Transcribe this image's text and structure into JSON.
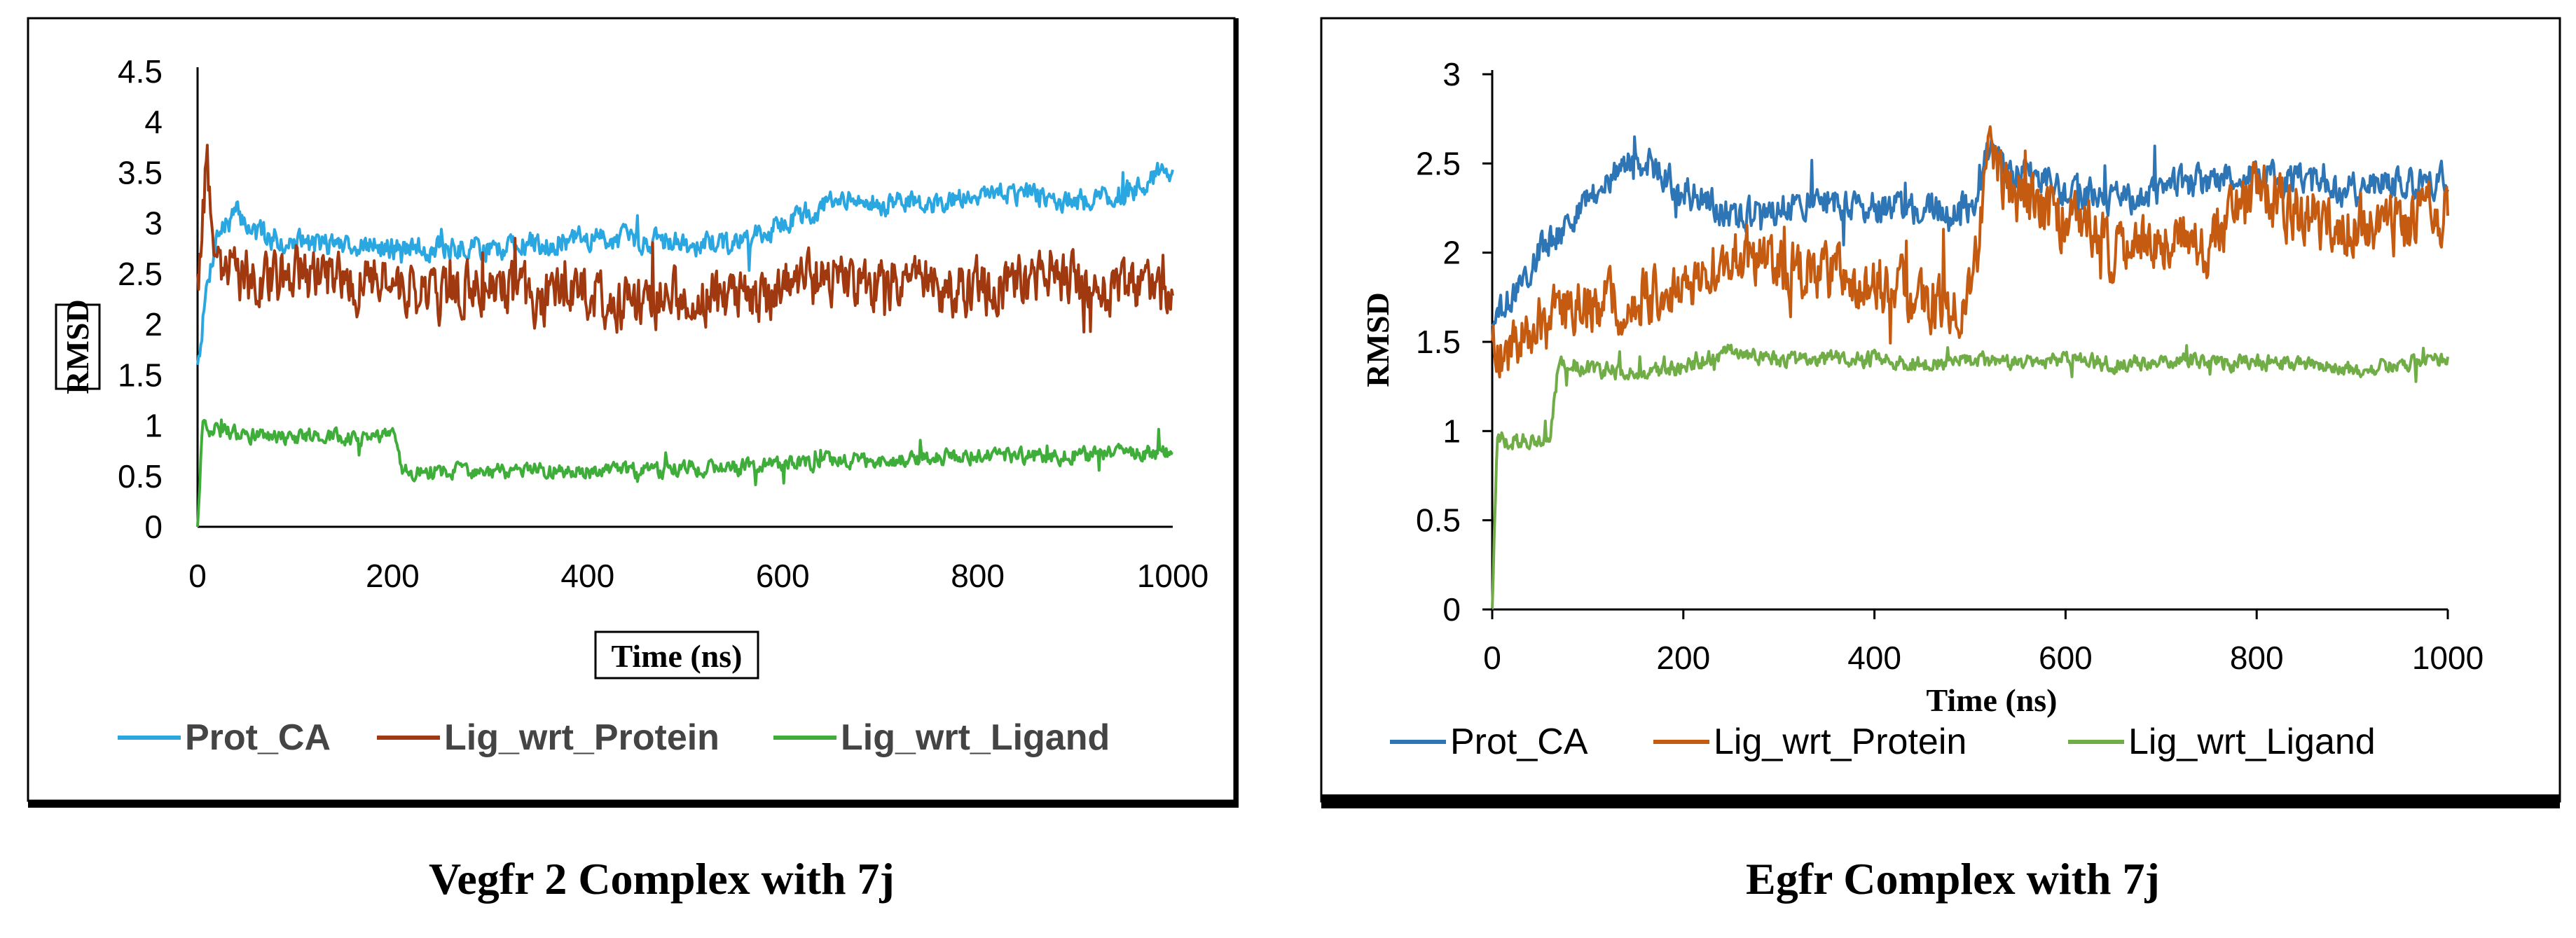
{
  "chart_data": [
    {
      "type": "line",
      "caption": "Vegfr 2 Complex with 7j",
      "xlabel": "Time (ns)",
      "ylabel": "RMSD",
      "xlim": [
        0,
        1000
      ],
      "ylim": [
        0,
        4.5
      ],
      "x_ticks": [
        "0",
        "200",
        "400",
        "600",
        "800",
        "1000"
      ],
      "y_ticks": [
        "0",
        "0.5",
        "1",
        "1.5",
        "2",
        "2.5",
        "3",
        "3.5",
        "4",
        "4.5"
      ],
      "legend_position": "bottom",
      "series": [
        {
          "name": "Prot_CA",
          "color": "#2aa7e0",
          "x": [
            0,
            10,
            20,
            40,
            60,
            100,
            150,
            200,
            250,
            300,
            350,
            400,
            450,
            500,
            550,
            600,
            650,
            700,
            750,
            800,
            850,
            900,
            950,
            1000
          ],
          "values": [
            1.6,
            2.4,
            2.9,
            3.1,
            2.9,
            2.8,
            2.8,
            2.75,
            2.75,
            2.75,
            2.8,
            2.85,
            2.85,
            2.8,
            2.8,
            3.0,
            3.2,
            3.2,
            3.2,
            3.3,
            3.3,
            3.2,
            3.3,
            3.55
          ]
        },
        {
          "name": "Lig_wrt_Protein",
          "color": "#a0390f",
          "x": [
            0,
            10,
            20,
            40,
            60,
            100,
            150,
            200,
            250,
            300,
            350,
            400,
            450,
            500,
            550,
            600,
            650,
            700,
            750,
            800,
            850,
            900,
            950,
            1000
          ],
          "values": [
            2.5,
            3.5,
            2.6,
            2.5,
            2.4,
            2.5,
            2.4,
            2.4,
            2.3,
            2.4,
            2.25,
            2.3,
            2.2,
            2.3,
            2.2,
            2.3,
            2.5,
            2.4,
            2.4,
            2.35,
            2.4,
            2.4,
            2.3,
            2.3
          ]
        },
        {
          "name": "Lig_wrt_Ligand",
          "color": "#3fad3a",
          "x": [
            0,
            5,
            20,
            50,
            100,
            150,
            200,
            210,
            230,
            300,
            350,
            400,
            450,
            500,
            550,
            600,
            650,
            700,
            750,
            800,
            850,
            900,
            950,
            1000
          ],
          "values": [
            0.0,
            0.95,
            0.95,
            0.9,
            0.9,
            0.88,
            0.88,
            0.55,
            0.55,
            0.55,
            0.55,
            0.55,
            0.55,
            0.58,
            0.58,
            0.62,
            0.65,
            0.65,
            0.68,
            0.7,
            0.7,
            0.7,
            0.72,
            0.75
          ]
        }
      ]
    },
    {
      "type": "line",
      "caption": "Egfr Complex with 7j",
      "xlabel": "Time (ns)",
      "ylabel": "RMSD",
      "xlim": [
        0,
        1000
      ],
      "ylim": [
        0,
        3
      ],
      "x_ticks": [
        "0",
        "200",
        "400",
        "600",
        "800",
        "1000"
      ],
      "y_ticks": [
        "0",
        "0.5",
        "1",
        "1.5",
        "2",
        "2.5",
        "3"
      ],
      "legend_position": "bottom",
      "series": [
        {
          "name": "Prot_CA",
          "color": "#2e75b6",
          "x": [
            0,
            20,
            50,
            100,
            150,
            200,
            250,
            300,
            350,
            400,
            450,
            500,
            520,
            550,
            600,
            650,
            700,
            750,
            800,
            850,
            900,
            950,
            1000
          ],
          "values": [
            1.6,
            1.75,
            2.0,
            2.3,
            2.55,
            2.35,
            2.2,
            2.25,
            2.3,
            2.25,
            2.25,
            2.25,
            2.55,
            2.45,
            2.35,
            2.3,
            2.35,
            2.4,
            2.45,
            2.4,
            2.35,
            2.4,
            2.4
          ]
        },
        {
          "name": "Lig_wrt_Protein",
          "color": "#c55a11",
          "x": [
            0,
            20,
            50,
            100,
            150,
            200,
            250,
            300,
            350,
            400,
            450,
            500,
            520,
            550,
            600,
            650,
            700,
            750,
            800,
            850,
            900,
            950,
            1000
          ],
          "values": [
            1.5,
            1.45,
            1.6,
            1.7,
            1.75,
            1.75,
            2.0,
            1.9,
            1.9,
            1.85,
            1.75,
            1.7,
            2.5,
            2.3,
            2.2,
            2.0,
            2.1,
            2.05,
            2.35,
            2.2,
            2.15,
            2.15,
            2.25
          ]
        },
        {
          "name": "Lig_wrt_Ligand",
          "color": "#70ad47",
          "x": [
            0,
            5,
            20,
            60,
            70,
            100,
            150,
            200,
            250,
            300,
            350,
            400,
            450,
            500,
            550,
            600,
            650,
            700,
            750,
            800,
            850,
            900,
            950,
            1000
          ],
          "values": [
            0.0,
            0.95,
            0.95,
            0.95,
            1.4,
            1.35,
            1.32,
            1.35,
            1.45,
            1.4,
            1.4,
            1.4,
            1.38,
            1.4,
            1.38,
            1.4,
            1.38,
            1.4,
            1.38,
            1.38,
            1.38,
            1.35,
            1.38,
            1.4
          ]
        }
      ]
    }
  ]
}
